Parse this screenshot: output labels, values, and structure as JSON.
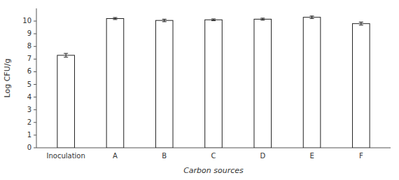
{
  "chart_data": {
    "type": "bar",
    "categories": [
      "Inoculation",
      "A",
      "B",
      "C",
      "D",
      "E",
      "F"
    ],
    "values": [
      7.3,
      10.2,
      10.05,
      10.1,
      10.15,
      10.3,
      9.8
    ],
    "errors": [
      0.15,
      0.08,
      0.1,
      0.07,
      0.08,
      0.1,
      0.12
    ],
    "color": "#ffffff",
    "xlabel": "Carbon sources",
    "ylabel": "Log CFU/g",
    "ylim": [
      0,
      11.0
    ],
    "yticks": [
      0,
      1,
      2,
      3,
      4,
      5,
      6,
      7,
      8,
      9,
      10
    ],
    "grid": false
  }
}
